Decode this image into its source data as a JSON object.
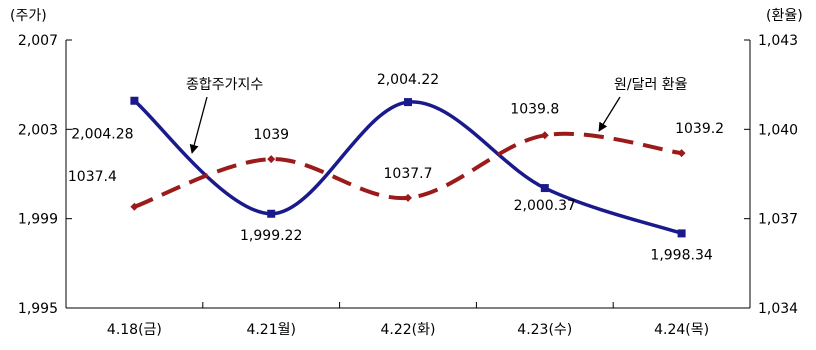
{
  "chart_data": {
    "type": "line",
    "categories": [
      "4.18(금)",
      "4.21월)",
      "4.22(화)",
      "4.23(수)",
      "4.24(목)"
    ],
    "left_axis": {
      "unit": "(주가)",
      "ylim": [
        1995,
        2007
      ],
      "ticks": [
        {
          "value": 2007,
          "label": "2,007"
        },
        {
          "value": 2003,
          "label": "2,003"
        },
        {
          "value": 1999,
          "label": "1,999"
        },
        {
          "value": 1995,
          "label": "1,995"
        }
      ]
    },
    "right_axis": {
      "unit": "(환율)",
      "ylim": [
        1034,
        1043
      ],
      "ticks": [
        {
          "value": 1043,
          "label": "1,043"
        },
        {
          "value": 1040,
          "label": "1,040"
        },
        {
          "value": 1037,
          "label": "1,037"
        },
        {
          "value": 1034,
          "label": "1,034"
        }
      ]
    },
    "series": [
      {
        "name": "종합주가지수",
        "axis": "left",
        "color": "#1a1a8c",
        "style": "solid",
        "marker": "square",
        "values": [
          2004.28,
          1999.22,
          2004.22,
          2000.37,
          1998.34
        ],
        "labels": [
          "2,004.28",
          "1,999.22",
          "2,004.22",
          "2,000.37",
          "1,998.34"
        ]
      },
      {
        "name": "원/달러 환율",
        "axis": "right",
        "color": "#9b1b1b",
        "style": "dashed",
        "marker": "diamond",
        "values": [
          1037.4,
          1039,
          1037.7,
          1039.8,
          1039.2
        ],
        "labels": [
          "1037.4",
          "1039",
          "1037.7",
          "1039.8",
          "1039.2"
        ]
      }
    ],
    "grid": false,
    "legend": "inline annotations with arrows"
  }
}
